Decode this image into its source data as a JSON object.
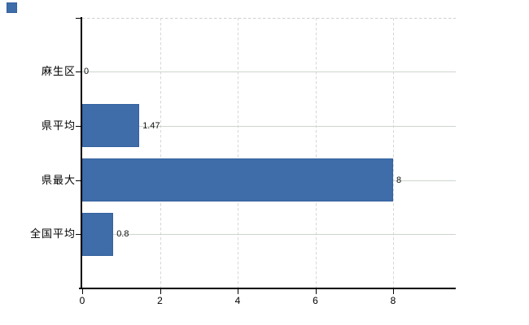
{
  "chart_data": {
    "type": "bar",
    "orientation": "horizontal",
    "title": "",
    "categories": [
      "麻生区",
      "県平均",
      "県最大",
      "全国平均"
    ],
    "values": [
      0,
      1.47,
      8,
      0.8
    ],
    "value_labels": [
      "0",
      "1.47",
      "8",
      "0.8"
    ],
    "xlabel": "",
    "ylabel": "",
    "xlim": [
      0,
      9.6
    ],
    "xticks": [
      0,
      2,
      4,
      6,
      8
    ],
    "xtick_labels": [
      "0",
      "2",
      "4",
      "6",
      "8"
    ],
    "grid": true,
    "legend_position": "top-left",
    "legend_marker_only": true,
    "colors": {
      "bar": "#3e6da9",
      "bar_border": "#35619e",
      "axis": "#000000",
      "hgrid": "#ccd5cc",
      "vgrid_dashed": "#d7d7d7",
      "text": "#000000"
    }
  }
}
